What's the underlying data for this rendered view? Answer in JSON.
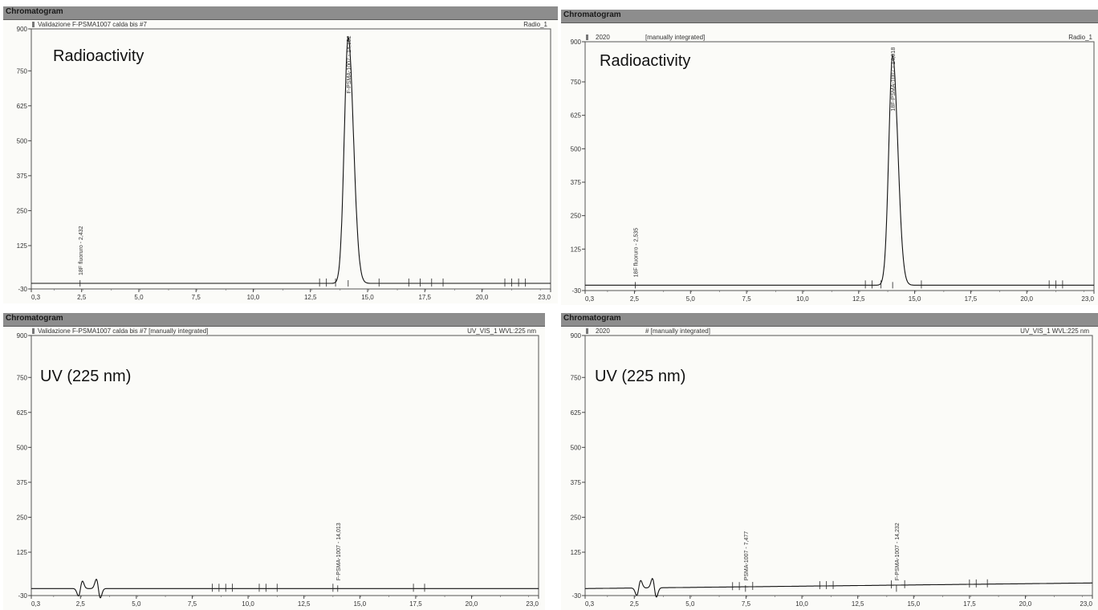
{
  "panels": [
    {
      "header": "Chromatogram",
      "subtitle": "Validazione F-PSMA1007 calda bis #7",
      "channel": "Radio_1",
      "annotation": "Radioactivity",
      "y_ticks": [
        "900",
        "750",
        "625",
        "500",
        "375",
        "250",
        "125",
        "-30"
      ],
      "x_ticks": [
        "0,3",
        "2,5",
        "5,0",
        "7,5",
        "10,0",
        "12,5",
        "15,0",
        "17,5",
        "20,0",
        "23,0"
      ],
      "peak_labels": [
        "18F fluoruro - 2,432",
        "F-PSMA-1007 - 14,152"
      ]
    },
    {
      "header": "Chromatogram",
      "subtitle": "2020",
      "subtitle2": "[manually integrated]",
      "channel": "Radio_1",
      "annotation": "Radioactivity",
      "y_ticks": [
        "900",
        "750",
        "625",
        "500",
        "375",
        "250",
        "125",
        "-30"
      ],
      "x_ticks": [
        "0,3",
        "2,5",
        "5,0",
        "7,5",
        "10,0",
        "12,5",
        "15,0",
        "17,5",
        "20,0",
        "23,0"
      ],
      "peak_labels": [
        "18F fluoruro - 2,535",
        "18F-PSMA-1007 - 14,018"
      ]
    },
    {
      "header": "Chromatogram",
      "subtitle": "Validazione F-PSMA1007 calda bis #7 [manually integrated]",
      "channel": "UV_VIS_1 WVL:225 nm",
      "annotation": "UV (225 nm)",
      "y_ticks": [
        "900",
        "750",
        "625",
        "500",
        "375",
        "250",
        "125",
        "-30"
      ],
      "x_ticks": [
        "0,3",
        "2,5",
        "5,0",
        "7,5",
        "10,0",
        "12,5",
        "15,0",
        "17,5",
        "20,0",
        "23,0"
      ],
      "peak_labels": [
        "F-PSMA-1007 - 14,013"
      ]
    },
    {
      "header": "Chromatogram",
      "subtitle": "2020",
      "subtitle2": "#  [manually integrated]",
      "channel": "UV_VIS_1 WVL:225 nm",
      "annotation": "UV (225 nm)",
      "y_ticks": [
        "900",
        "750",
        "625",
        "500",
        "375",
        "250",
        "125",
        "-30"
      ],
      "x_ticks": [
        "0,3",
        "2,5",
        "5,0",
        "7,5",
        "10,0",
        "12,5",
        "15,0",
        "17,5",
        "20,0",
        "23,0"
      ],
      "peak_labels": [
        "PSMA-1007 - 7,477",
        "F-PSMA-1007 - 14,232"
      ]
    }
  ],
  "chart_data": [
    {
      "type": "line",
      "title": "Validazione F-PSMA1007 calda bis #7",
      "series_label": "Radio_1",
      "xlim": [
        0.3,
        23.0
      ],
      "ylim": [
        -30,
        900
      ],
      "baseline": -10,
      "peaks": [
        {
          "label": "18F fluoruro - 2,432",
          "x": 2.432,
          "height": 0
        },
        {
          "label": "F-PSMA-1007 - 14,152",
          "x": 14.152,
          "height": 880,
          "sigma": 0.17
        }
      ],
      "integration_marks_x": [
        12.9,
        13.2,
        13.6,
        15.5,
        16.8,
        17.3,
        17.8,
        18.3,
        21.0,
        21.3,
        21.6,
        21.9
      ]
    },
    {
      "type": "line",
      "title": "2020 [manually integrated]",
      "series_label": "Radio_1",
      "xlim": [
        0.3,
        23.0
      ],
      "ylim": [
        -30,
        900
      ],
      "baseline": -10,
      "peaks": [
        {
          "label": "18F fluoruro - 2,535",
          "x": 2.535,
          "height": 0
        },
        {
          "label": "18F-PSMA-1007 - 14,018",
          "x": 14.018,
          "height": 860,
          "sigma": 0.17
        }
      ],
      "integration_marks_x": [
        12.8,
        13.1,
        13.5,
        15.3,
        21.0,
        21.3,
        21.6
      ]
    },
    {
      "type": "line",
      "title": "Validazione F-PSMA1007 calda bis #7 [manually integrated]",
      "series_label": "UV_VIS_1 WVL:225 nm",
      "xlim": [
        0.3,
        23.0
      ],
      "ylim": [
        -30,
        900
      ],
      "baseline": -5,
      "peaks": [
        {
          "label": "F-PSMA-1007 - 14,013",
          "x": 14.013,
          "height": 0
        }
      ],
      "injection_wiggles_x": [
        2.5,
        3.3
      ],
      "integration_marks_x": [
        8.4,
        8.7,
        9.0,
        9.3,
        10.5,
        10.8,
        11.3,
        13.8,
        17.4,
        17.9
      ]
    },
    {
      "type": "line",
      "title": "2020 # [manually integrated]",
      "series_label": "UV_VIS_1 WVL:225 nm",
      "xlim": [
        0.3,
        23.0
      ],
      "ylim": [
        -30,
        900
      ],
      "baseline": -5,
      "baseline_end": 15,
      "peaks": [
        {
          "label": "PSMA-1007 - 7,477",
          "x": 7.477,
          "height": 0
        },
        {
          "label": "F-PSMA-1007 - 14,232",
          "x": 14.232,
          "height": 0
        }
      ],
      "injection_wiggles_x": [
        2.7,
        3.4
      ],
      "integration_marks_x": [
        6.9,
        7.2,
        7.8,
        10.8,
        11.1,
        11.4,
        14.0,
        14.6,
        17.5,
        17.8,
        18.3
      ]
    }
  ]
}
